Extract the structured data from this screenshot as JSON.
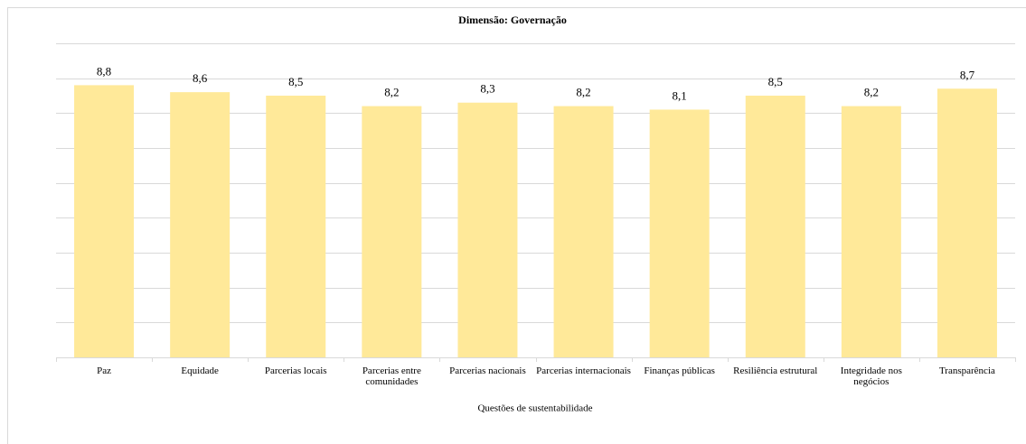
{
  "chart_data": {
    "type": "bar",
    "title": "Dimensão: Governação",
    "x_label": "Questões de sustentabilidade",
    "categories": [
      "Paz",
      "Equidade",
      "Parcerias locais",
      "Parcerias entre comunidades",
      "Parcerias nacionais",
      "Parcerias internacionais",
      "Finanças públicas",
      "Resiliência estrutural",
      "Integridade nos negócios",
      "Transparência"
    ],
    "values": [
      8.8,
      8.6,
      8.5,
      8.2,
      8.3,
      8.2,
      8.1,
      8.5,
      8.2,
      8.7
    ],
    "value_labels": [
      "8,8",
      "8,6",
      "8,5",
      "8,2",
      "8,3",
      "8,2",
      "8,1",
      "8,5",
      "8,2",
      "8,7"
    ],
    "color": "#ffe999",
    "ylim": [
      1,
      10
    ],
    "yticks": [
      1,
      2,
      3,
      4,
      5,
      6,
      7,
      8,
      9,
      10
    ],
    "grid": true
  }
}
